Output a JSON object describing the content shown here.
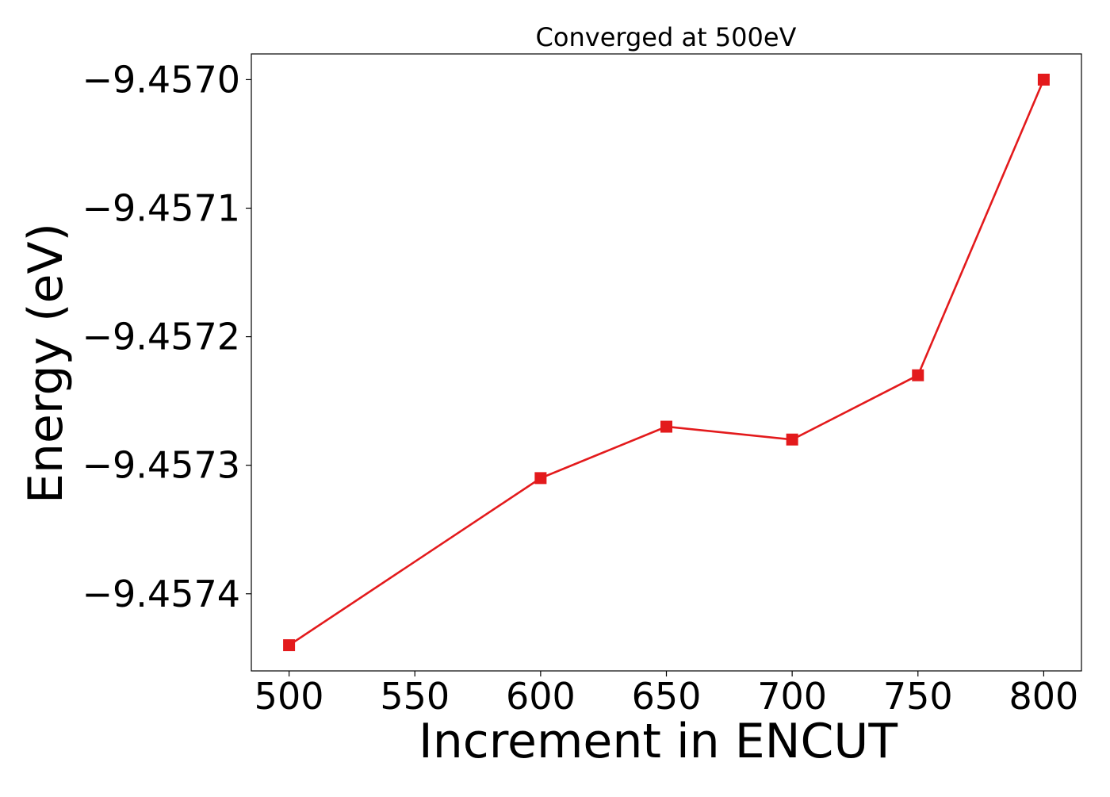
{
  "chart_data": {
    "type": "line",
    "title": "Converged at 500eV",
    "xlabel": "Increment in ENCUT",
    "ylabel": "Energy (eV)",
    "x_ticks": [
      500,
      550,
      600,
      650,
      700,
      750,
      800
    ],
    "x_tick_labels": [
      "500",
      "550",
      "600",
      "650",
      "700",
      "750",
      "800"
    ],
    "y_ticks": [
      -9.457,
      -9.4571,
      -9.4572,
      -9.4573,
      -9.4574
    ],
    "y_tick_labels": [
      "−9.4570",
      "−9.4571",
      "−9.4572",
      "−9.4573",
      "−9.4574"
    ],
    "xlim": [
      485,
      815
    ],
    "ylim": [
      -9.45746,
      -9.45698
    ],
    "grid": false,
    "series": [
      {
        "color": "#e31a1c",
        "marker": "square",
        "x": [
          500,
          600,
          650,
          700,
          750,
          800
        ],
        "y": [
          -9.45744,
          -9.45731,
          -9.45727,
          -9.45728,
          -9.45723,
          -9.457
        ]
      }
    ]
  }
}
